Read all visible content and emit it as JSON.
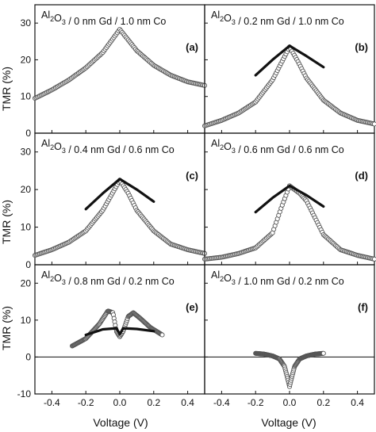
{
  "figure": {
    "y_axis_label": "TMR (%)",
    "x_axis_label": "Voltage (V)"
  },
  "chart_data": [
    {
      "type": "scatter",
      "panel_tag": "(a)",
      "title": {
        "pre": "Al",
        "sub1": "2",
        "mid": "O",
        "sub2": "3",
        "post": " / 0 nm Gd / 1.0 nm Co"
      },
      "xlim": [
        -0.5,
        0.5
      ],
      "ylim": [
        0,
        35
      ],
      "yticks": [
        0,
        10,
        20,
        30
      ],
      "xticks": [
        -0.4,
        -0.2,
        0.0,
        0.2,
        0.4
      ],
      "measured": {
        "x": [
          -0.5,
          -0.4,
          -0.3,
          -0.2,
          -0.1,
          0.0,
          0.1,
          0.2,
          0.3,
          0.4,
          0.5
        ],
        "y": [
          9.5,
          11.8,
          14.5,
          17.8,
          22.0,
          28.3,
          22.5,
          18.5,
          15.8,
          14.0,
          13.0
        ]
      },
      "model": null
    },
    {
      "type": "scatter",
      "panel_tag": "(b)",
      "title": {
        "pre": "Al",
        "sub1": "2",
        "mid": "O",
        "sub2": "3",
        "post": " / 0.2 nm Gd / 1.0 nm Co"
      },
      "xlim": [
        -0.5,
        0.5
      ],
      "ylim": [
        0,
        35
      ],
      "yticks": [
        0,
        10,
        20,
        30
      ],
      "xticks": [
        -0.4,
        -0.2,
        0.0,
        0.2,
        0.4
      ],
      "measured": {
        "x": [
          -0.5,
          -0.4,
          -0.3,
          -0.2,
          -0.1,
          -0.05,
          0.0,
          0.05,
          0.1,
          0.2,
          0.3,
          0.4,
          0.5
        ],
        "y": [
          2.0,
          3.5,
          5.5,
          8.5,
          14.5,
          19.0,
          23.5,
          19.5,
          15.0,
          9.0,
          5.5,
          3.5,
          2.5
        ]
      },
      "model": {
        "x": [
          -0.2,
          -0.1,
          0.0,
          0.1,
          0.2
        ],
        "y": [
          15.8,
          20.0,
          23.8,
          21.0,
          18.0
        ]
      }
    },
    {
      "type": "scatter",
      "panel_tag": "(c)",
      "title": {
        "pre": "Al",
        "sub1": "2",
        "mid": "O",
        "sub2": "3",
        "post": " / 0.4 nm Gd / 0.6 nm Co"
      },
      "xlim": [
        -0.5,
        0.5
      ],
      "ylim": [
        0,
        35
      ],
      "yticks": [
        0,
        10,
        20,
        30
      ],
      "xticks": [
        -0.4,
        -0.2,
        0.0,
        0.2,
        0.4
      ],
      "measured": {
        "x": [
          -0.5,
          -0.4,
          -0.3,
          -0.2,
          -0.1,
          -0.05,
          0.0,
          0.05,
          0.1,
          0.2,
          0.3,
          0.4,
          0.5
        ],
        "y": [
          2.5,
          4.0,
          6.0,
          9.0,
          14.5,
          18.5,
          22.5,
          19.0,
          14.5,
          9.0,
          5.5,
          4.0,
          3.0
        ]
      },
      "model": {
        "x": [
          -0.2,
          -0.1,
          0.0,
          0.1,
          0.2
        ],
        "y": [
          14.8,
          19.0,
          22.8,
          20.0,
          16.8
        ]
      }
    },
    {
      "type": "scatter",
      "panel_tag": "(d)",
      "title": {
        "pre": "Al",
        "sub1": "2",
        "mid": "O",
        "sub2": "3",
        "post": " / 0.6 nm Gd / 0.6 nm Co"
      },
      "xlim": [
        -0.5,
        0.5
      ],
      "ylim": [
        0,
        35
      ],
      "yticks": [
        0,
        10,
        20,
        30
      ],
      "xticks": [
        -0.4,
        -0.2,
        0.0,
        0.2,
        0.4
      ],
      "measured": {
        "x": [
          -0.5,
          -0.4,
          -0.3,
          -0.2,
          -0.1,
          -0.05,
          0.0,
          0.03,
          0.06,
          0.1,
          0.2,
          0.3,
          0.4,
          0.5
        ],
        "y": [
          1.5,
          2.0,
          3.0,
          4.5,
          8.5,
          15.0,
          21.0,
          20.0,
          19.0,
          17.0,
          8.0,
          4.0,
          2.5,
          1.5
        ]
      },
      "model": {
        "x": [
          -0.2,
          -0.1,
          0.0,
          0.1,
          0.2
        ],
        "y": [
          14.0,
          17.8,
          21.0,
          18.5,
          15.5
        ]
      }
    },
    {
      "type": "scatter",
      "panel_tag": "(e)",
      "title": {
        "pre": "Al",
        "sub1": "2",
        "mid": "O",
        "sub2": "3",
        "post": " / 0.8 nm Gd / 0.2 nm Co"
      },
      "xlim": [
        -0.5,
        0.5
      ],
      "ylim": [
        -10,
        25
      ],
      "yticks": [
        -10,
        0,
        10,
        20
      ],
      "xticks": [
        -0.4,
        -0.2,
        0.0,
        0.2,
        0.4
      ],
      "measured": {
        "x": [
          -0.28,
          -0.2,
          -0.12,
          -0.07,
          -0.04,
          -0.02,
          0.0,
          0.02,
          0.05,
          0.08,
          0.12,
          0.18,
          0.25
        ],
        "y": [
          3.0,
          5.0,
          9.0,
          12.5,
          12.0,
          7.0,
          5.5,
          7.0,
          11.0,
          12.0,
          10.5,
          8.0,
          6.0
        ]
      },
      "model": {
        "x": [
          -0.2,
          -0.1,
          -0.02,
          0.0,
          0.02,
          0.1,
          0.2
        ],
        "y": [
          6.0,
          7.5,
          7.8,
          6.2,
          7.8,
          7.6,
          7.0
        ]
      }
    },
    {
      "type": "scatter",
      "panel_tag": "(f)",
      "title": {
        "pre": "Al",
        "sub1": "2",
        "mid": "O",
        "sub2": "3",
        "post": " / 1.0 nm Gd / 0.2 nm Co"
      },
      "xlim": [
        -0.5,
        0.5
      ],
      "ylim": [
        -10,
        25
      ],
      "yticks": [
        -10,
        0,
        10,
        20
      ],
      "xticks": [
        -0.4,
        -0.2,
        0.0,
        0.2,
        0.4
      ],
      "measured": {
        "x": [
          -0.2,
          -0.15,
          -0.1,
          -0.06,
          -0.03,
          -0.01,
          0.0,
          0.01,
          0.03,
          0.06,
          0.1,
          0.15,
          0.2
        ],
        "y": [
          1.0,
          0.8,
          0.3,
          -0.5,
          -2.5,
          -6.0,
          -8.0,
          -6.0,
          -2.5,
          -0.5,
          0.3,
          0.8,
          1.0
        ]
      },
      "model": null
    }
  ]
}
